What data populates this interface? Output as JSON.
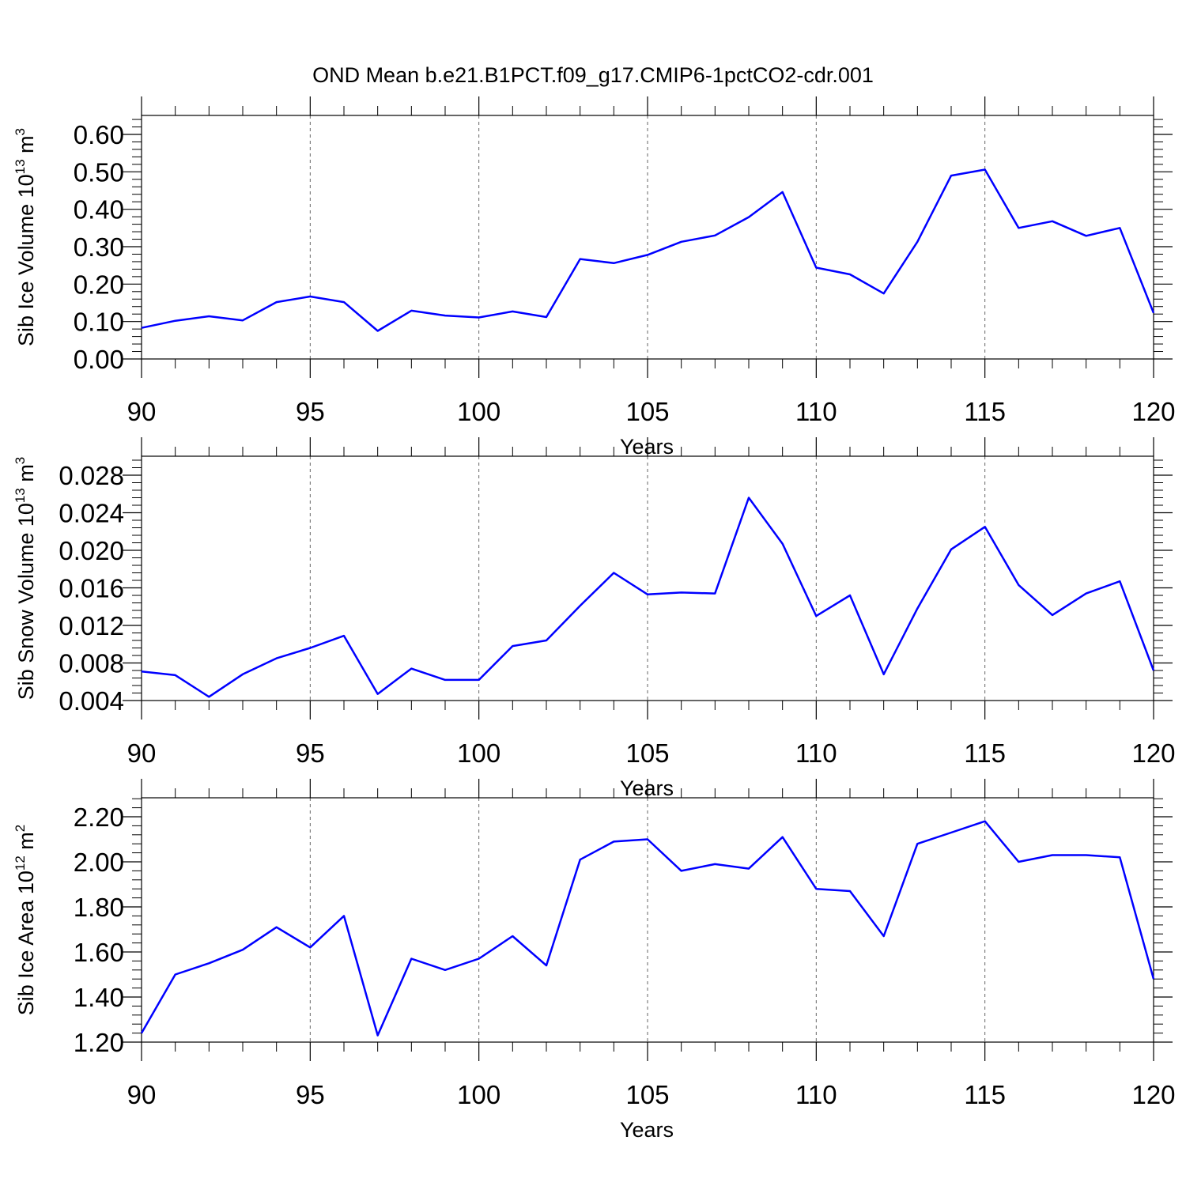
{
  "title": "OND Mean b.e21.B1PCT.f09_g17.CMIP6-1pctCO2-cdr.001",
  "colors": {
    "line": "#0000ff",
    "axis": "#000000",
    "grid": "#666666"
  },
  "chart_data": [
    {
      "type": "line",
      "xlabel": "Years",
      "ylabel": {
        "text": "Sib Ice Volume 10",
        "exp": "13",
        "unit": " m",
        "unit_exp": "3"
      },
      "xlim": [
        90,
        120
      ],
      "ylim": [
        0.0,
        0.6
      ],
      "x_ticks": [
        90,
        95,
        100,
        105,
        110,
        115,
        120
      ],
      "x_tick_labels": [
        "90",
        "95",
        "100",
        "105",
        "110",
        "115",
        "120"
      ],
      "y_ticks": [
        0.0,
        0.1,
        0.2,
        0.3,
        0.4,
        0.5,
        0.6
      ],
      "y_tick_labels": [
        "0.00",
        "0.10",
        "0.20",
        "0.30",
        "0.40",
        "0.50",
        "0.60"
      ],
      "grid": "vertical dashed at major x ticks",
      "x": [
        90,
        91,
        92,
        93,
        94,
        95,
        96,
        97,
        98,
        99,
        100,
        101,
        102,
        103,
        104,
        105,
        106,
        107,
        108,
        109,
        110,
        111,
        112,
        113,
        114,
        115,
        116,
        117,
        118,
        119,
        120
      ],
      "values": [
        0.083,
        0.102,
        0.114,
        0.103,
        0.152,
        0.167,
        0.152,
        0.075,
        0.129,
        0.116,
        0.111,
        0.127,
        0.112,
        0.267,
        0.256,
        0.278,
        0.313,
        0.33,
        0.379,
        0.446,
        0.244,
        0.226,
        0.175,
        0.313,
        0.49,
        0.506,
        0.35,
        0.368,
        0.329,
        0.35,
        0.123
      ]
    },
    {
      "type": "line",
      "xlabel": "Years",
      "ylabel": {
        "text": "Sib Snow Volume 10",
        "exp": "13",
        "unit": " m",
        "unit_exp": "3"
      },
      "xlim": [
        90,
        120
      ],
      "ylim": [
        0.004,
        0.028
      ],
      "x_ticks": [
        90,
        95,
        100,
        105,
        110,
        115,
        120
      ],
      "x_tick_labels": [
        "90",
        "95",
        "100",
        "105",
        "110",
        "115",
        "120"
      ],
      "y_ticks": [
        0.004,
        0.008,
        0.012,
        0.016,
        0.02,
        0.024,
        0.028
      ],
      "y_tick_labels": [
        "0.004",
        "0.008",
        "0.012",
        "0.016",
        "0.020",
        "0.024",
        "0.028"
      ],
      "grid": "vertical dashed at major x ticks",
      "x": [
        90,
        91,
        92,
        93,
        94,
        95,
        96,
        97,
        98,
        99,
        100,
        101,
        102,
        103,
        104,
        105,
        106,
        107,
        108,
        109,
        110,
        111,
        112,
        113,
        114,
        115,
        116,
        117,
        118,
        119,
        120
      ],
      "values": [
        0.0071,
        0.0067,
        0.0044,
        0.0068,
        0.0085,
        0.0096,
        0.0109,
        0.0047,
        0.0074,
        0.0062,
        0.0062,
        0.0098,
        0.0104,
        0.0141,
        0.0176,
        0.0153,
        0.0155,
        0.0154,
        0.0256,
        0.0207,
        0.013,
        0.0152,
        0.0068,
        0.0138,
        0.0201,
        0.0225,
        0.0163,
        0.0131,
        0.0154,
        0.0167,
        0.0072
      ]
    },
    {
      "type": "line",
      "xlabel": "Years",
      "ylabel": {
        "text": "Sib Ice Area 10",
        "exp": "12",
        "unit": " m",
        "unit_exp": "2"
      },
      "xlim": [
        90,
        120
      ],
      "ylim": [
        1.2,
        2.2
      ],
      "x_ticks": [
        90,
        95,
        100,
        105,
        110,
        115,
        120
      ],
      "x_tick_labels": [
        "90",
        "95",
        "100",
        "105",
        "110",
        "115",
        "120"
      ],
      "y_ticks": [
        1.2,
        1.4,
        1.6,
        1.8,
        2.0,
        2.2
      ],
      "y_tick_labels": [
        "1.20",
        "1.40",
        "1.60",
        "1.80",
        "2.00",
        "2.20"
      ],
      "grid": "vertical dashed at major x ticks",
      "x": [
        90,
        91,
        92,
        93,
        94,
        95,
        96,
        97,
        98,
        99,
        100,
        101,
        102,
        103,
        104,
        105,
        106,
        107,
        108,
        109,
        110,
        111,
        112,
        113,
        114,
        115,
        116,
        117,
        118,
        119,
        120
      ],
      "values": [
        1.24,
        1.5,
        1.55,
        1.61,
        1.71,
        1.62,
        1.76,
        1.23,
        1.57,
        1.52,
        1.57,
        1.67,
        1.54,
        2.01,
        2.09,
        2.1,
        1.96,
        1.99,
        1.97,
        2.11,
        1.88,
        1.87,
        1.67,
        2.08,
        2.13,
        2.18,
        2.0,
        2.03,
        2.03,
        2.02,
        1.48
      ]
    }
  ]
}
